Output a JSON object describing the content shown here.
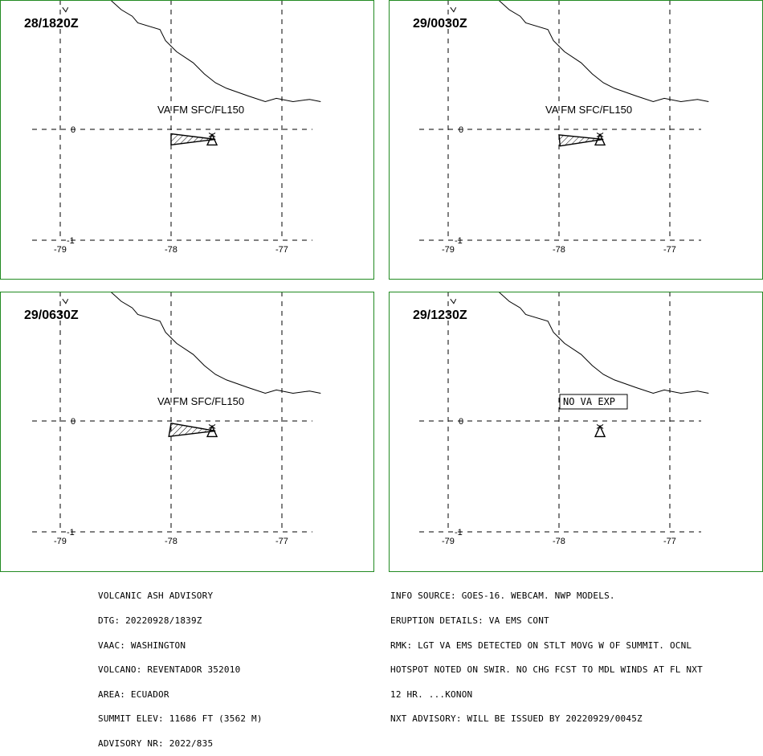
{
  "panels": [
    {
      "valid_time": "28/1820Z",
      "va_label": "VA FM SFC/FL150",
      "ash_polygon": [
        [
          -78.0,
          -0.04
        ],
        [
          -78.0,
          -0.14
        ],
        [
          -77.6,
          -0.09
        ]
      ],
      "summit_marker": true
    },
    {
      "valid_time": "29/0030Z",
      "va_label": "VA FM SFC/FL150",
      "ash_polygon": [
        [
          -78.0,
          -0.05
        ],
        [
          -77.99,
          -0.15
        ],
        [
          -77.6,
          -0.09
        ]
      ],
      "summit_marker": true
    },
    {
      "valid_time": "29/0630Z",
      "va_label": "VA FM SFC/FL150",
      "ash_polygon": [
        [
          -78.0,
          -0.02
        ],
        [
          -78.02,
          -0.14
        ],
        [
          -77.6,
          -0.09
        ]
      ],
      "summit_marker": true
    },
    {
      "valid_time": "29/1230Z",
      "boxed_label": "NO VA EXP",
      "ash_polygon": [],
      "summit_marker": true
    }
  ],
  "map": {
    "lon_ticks": [
      "-79",
      "-78",
      "-77"
    ],
    "lat_ticks": [
      "0",
      "-1"
    ],
    "lon_range": [
      -79.0,
      -77.0
    ],
    "lat_range": [
      -1.0,
      0.0
    ],
    "coastline": [
      [
        -78.55,
        1.17
      ],
      [
        -78.45,
        1.08
      ],
      [
        -78.35,
        1.02
      ],
      [
        -78.3,
        0.96
      ],
      [
        -78.1,
        0.9
      ],
      [
        -78.05,
        0.8
      ],
      [
        -77.95,
        0.7
      ],
      [
        -77.8,
        0.6
      ],
      [
        -77.7,
        0.5
      ],
      [
        -77.6,
        0.42
      ],
      [
        -77.5,
        0.37
      ],
      [
        -77.3,
        0.3
      ],
      [
        -77.15,
        0.25
      ],
      [
        -77.05,
        0.28
      ],
      [
        -76.9,
        0.25
      ],
      [
        -76.75,
        0.27
      ],
      [
        -76.65,
        0.25
      ]
    ],
    "island": [
      [
        -78.98,
        1.1
      ],
      [
        -78.95,
        1.06
      ],
      [
        -78.93,
        1.1
      ]
    ],
    "colors": {
      "frame": "#228b22",
      "ink": "#000000"
    }
  },
  "advisory_left": [
    "VOLCANIC ASH ADVISORY",
    "DTG: 20220928/1839Z",
    "VAAC: WASHINGTON",
    "VOLCANO: REVENTADOR 352010",
    "AREA: ECUADOR",
    "SUMMIT ELEV: 11686 FT (3562 M)",
    "ADVISORY NR: 2022/835"
  ],
  "advisory_right": [
    "INFO SOURCE: GOES-16. WEBCAM. NWP MODELS.",
    "ERUPTION DETAILS: VA EMS CONT",
    "RMK: LGT VA EMS DETECTED ON STLT MOVG W OF SUMMIT. OCNL",
    "HOTSPOT NOTED ON SWIR. NO CHG FCST TO MDL WINDS AT FL NXT",
    "12 HR. ...KONON",
    "NXT ADVISORY: WILL BE ISSUED BY 20220929/0045Z"
  ]
}
